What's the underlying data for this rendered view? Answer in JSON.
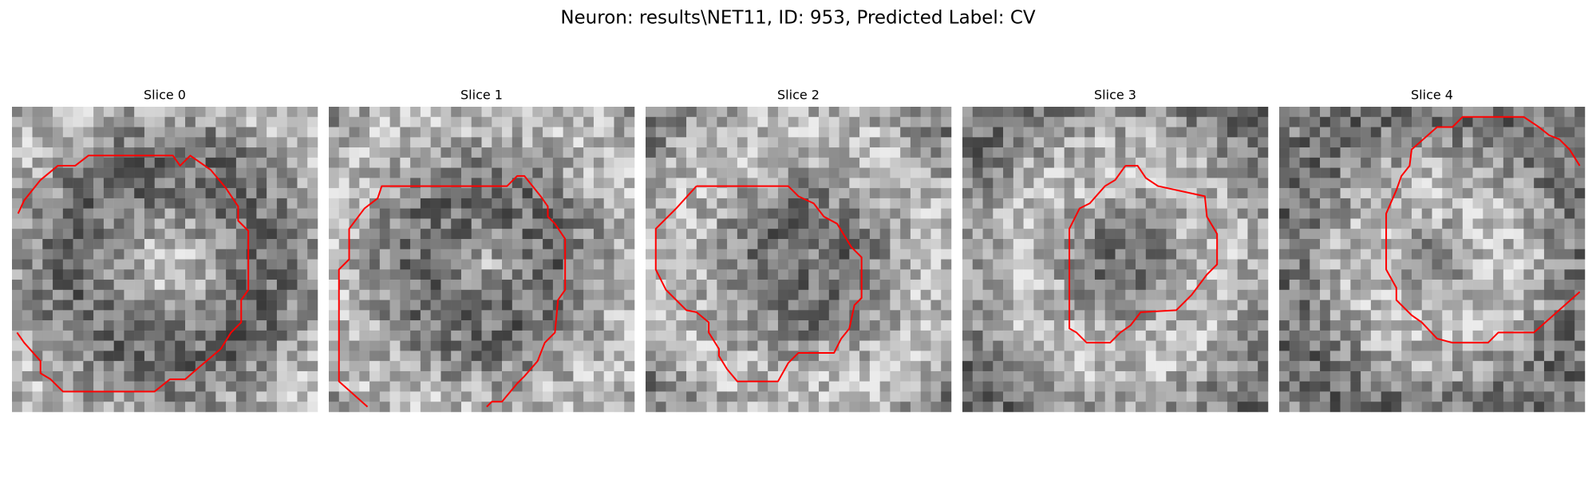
{
  "header": {
    "title": "Neuron: results\\NET11, ID: 953, Predicted Label: CV"
  },
  "panels": [
    {
      "title": "Slice 0"
    },
    {
      "title": "Slice 1"
    },
    {
      "title": "Slice 2"
    },
    {
      "title": "Slice 3"
    },
    {
      "title": "Slice 4"
    }
  ]
}
